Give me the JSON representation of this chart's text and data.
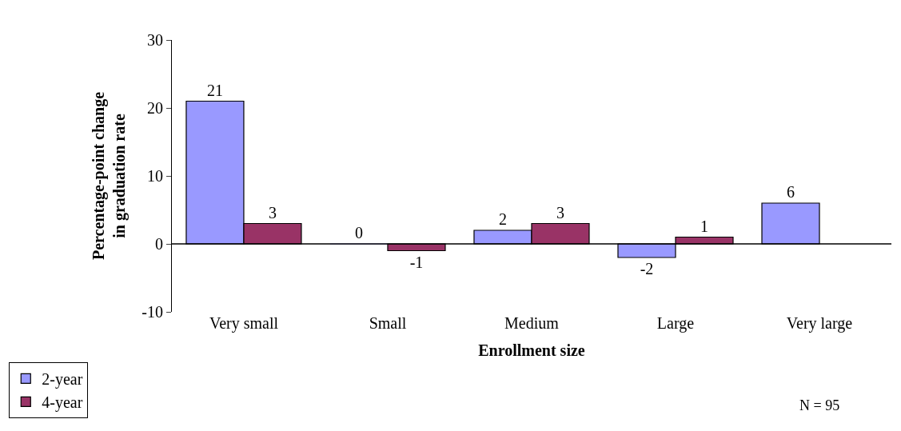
{
  "chart_data": {
    "type": "bar",
    "xlabel": "Enrollment size",
    "ylabel": "Percentage-point change in graduation rate",
    "categories": [
      "Very small",
      "Small",
      "Medium",
      "Large",
      "Very large"
    ],
    "series": [
      {
        "name": "2-year",
        "color": "#9999ff",
        "values": [
          21,
          0,
          2,
          -2,
          6
        ]
      },
      {
        "name": "4-year",
        "color": "#993366",
        "values": [
          3,
          -1,
          3,
          1,
          null
        ]
      }
    ],
    "ylim": [
      -10,
      30
    ],
    "yticks": [
      -10,
      0,
      10,
      20,
      30
    ],
    "data_labels": true,
    "legend": "bottom left",
    "ref_lines": [
      {
        "axis": "y",
        "value": 0,
        "color": "#000000"
      }
    ],
    "annotations": [
      "N = 95"
    ]
  }
}
